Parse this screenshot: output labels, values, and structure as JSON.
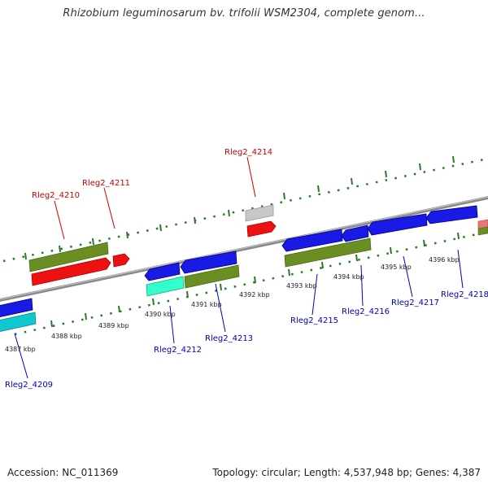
{
  "title": "Rhizobium leguminosarum bv. trifolii WSM2304, complete genom...",
  "footer": {
    "accession": "Accession: NC_011369",
    "summary": "Topology: circular; Length: 4,537,948 bp; Genes: 4,387"
  },
  "colors": {
    "forward_label": "#cc0000",
    "reverse_label": "#0000bb",
    "genome_line": "#888888",
    "tick_dots": "#2a7a2a",
    "blue": "#1a1ae6",
    "red": "#ee1111",
    "olive": "#6b8e23",
    "cyan": "#11c7cf",
    "aqua": "#33ffcc",
    "gray": "#c8c8c8",
    "pink": "#e87878"
  },
  "scale_labels": [
    "4387 kbp",
    "4388 kbp",
    "4389 kbp",
    "4390 kbp",
    "4391 kbp",
    "4392 kbp",
    "4393 kbp",
    "4394 kbp",
    "4395 kbp",
    "4396 kbp"
  ],
  "gene_labels": {
    "forward": [
      "Rleg2_4210",
      "Rleg2_4211",
      "Rleg2_4214"
    ],
    "reverse": [
      "Rleg2_4209",
      "Rleg2_4212",
      "Rleg2_4213",
      "Rleg2_4215",
      "Rleg2_4216",
      "Rleg2_4217",
      "Rleg2_4218"
    ]
  }
}
